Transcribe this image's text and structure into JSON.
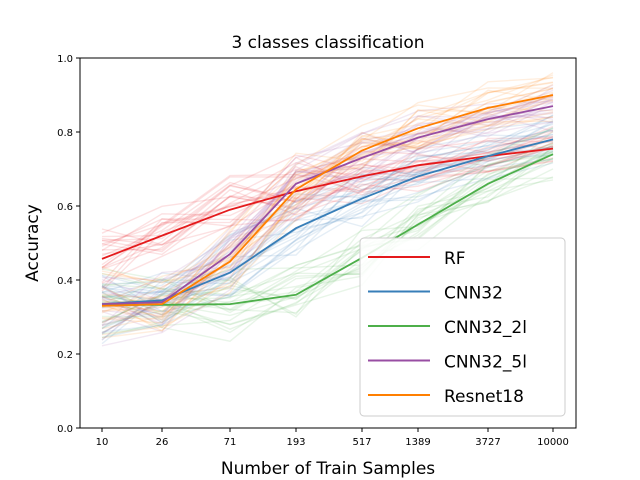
{
  "chart_data": {
    "type": "line",
    "title": "3 classes classification",
    "xlabel": "Number of Train Samples",
    "ylabel": "Accuracy",
    "x": [
      10,
      26,
      71,
      193,
      517,
      1389,
      3727,
      10000
    ],
    "x_tick_labels": [
      "10",
      "26",
      "71",
      "193",
      "517",
      "1389",
      "3727",
      "10000"
    ],
    "x_scale": "log",
    "ylim": [
      0.0,
      1.0
    ],
    "y_ticks": [
      0.0,
      0.2,
      0.4,
      0.6,
      0.8,
      1.0
    ],
    "y_tick_labels": [
      "0.0",
      "0.2",
      "0.4",
      "0.6",
      "0.8",
      "1.0"
    ],
    "grid": false,
    "legend_position": "bottom-right",
    "series": [
      {
        "name": "RF",
        "color": "#e41a1c",
        "values": [
          0.457,
          0.52,
          0.59,
          0.64,
          0.68,
          0.71,
          0.735,
          0.755
        ]
      },
      {
        "name": "CNN32",
        "color": "#377eb8",
        "values": [
          0.335,
          0.345,
          0.42,
          0.54,
          0.62,
          0.68,
          0.735,
          0.78
        ]
      },
      {
        "name": "CNN32_2l",
        "color": "#4daf4a",
        "values": [
          0.333,
          0.333,
          0.335,
          0.36,
          0.46,
          0.55,
          0.66,
          0.74
        ]
      },
      {
        "name": "CNN32_5l",
        "color": "#984ea3",
        "values": [
          0.335,
          0.34,
          0.47,
          0.66,
          0.73,
          0.785,
          0.835,
          0.87
        ]
      },
      {
        "name": "Resnet18",
        "color": "#ff7f00",
        "values": [
          0.33,
          0.335,
          0.45,
          0.645,
          0.75,
          0.81,
          0.865,
          0.9
        ]
      }
    ]
  }
}
